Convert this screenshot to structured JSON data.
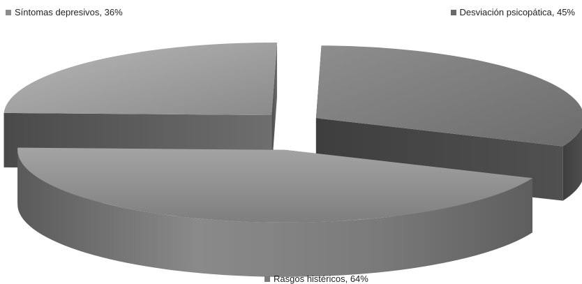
{
  "chart_data": {
    "type": "pie",
    "title": "",
    "series": [
      {
        "slices": [
          {
            "label": "Síntomas depresivos",
            "value": 36,
            "display": "Síntomas depresivos, 36%",
            "color": "#8c8c8c"
          },
          {
            "label": "Desviación psicopática",
            "value": 45,
            "display": "Desviación psicopática, 45%",
            "color": "#6a6a6a"
          },
          {
            "label": "Rasgos histéricos",
            "value": 64,
            "display": "Rasgos histéricos, 64%",
            "color": "#7b7b7b"
          }
        ]
      }
    ],
    "exploded": true,
    "three_d": true,
    "legend": "none"
  }
}
